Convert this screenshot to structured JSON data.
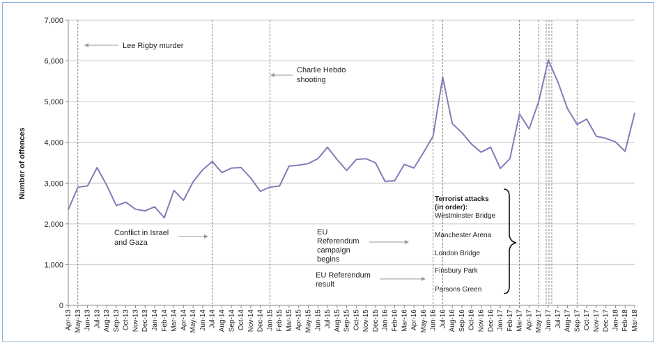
{
  "chart_data": {
    "type": "line",
    "ylabel": "Number of offences",
    "ylim": [
      0,
      7000
    ],
    "yticks": [
      0,
      1000,
      2000,
      3000,
      4000,
      5000,
      6000,
      7000
    ],
    "ytick_labels": [
      "0",
      "1,000",
      "2,000",
      "3,000",
      "4,000",
      "5,000",
      "6,000",
      "7,000"
    ],
    "grid": "horizontal",
    "categories": [
      "Apr-13",
      "May-13",
      "Jun-13",
      "Jul-13",
      "Aug-13",
      "Sep-13",
      "Oct-13",
      "Nov-13",
      "Dec-13",
      "Jan-14",
      "Feb-14",
      "Mar-14",
      "Apr-14",
      "May-14",
      "Jun-14",
      "Jul-14",
      "Aug-14",
      "Sep-14",
      "Oct-14",
      "Nov-14",
      "Dec-14",
      "Jan-15",
      "Feb-15",
      "Mar-15",
      "Apr-15",
      "May-15",
      "Jun-15",
      "Jul-15",
      "Aug-15",
      "Sep-15",
      "Oct-15",
      "Nov-15",
      "Dec-15",
      "Jan-16",
      "Feb-16",
      "Mar-16",
      "Apr-16",
      "May-16",
      "Jun-16",
      "Jul-16",
      "Aug-16",
      "Sep-16",
      "Oct-16",
      "Nov-16",
      "Dec-16",
      "Jan-17",
      "Feb-17",
      "Mar-17",
      "Apr-17",
      "May-17",
      "Jun-17",
      "Jul-17",
      "Aug-17",
      "Sep-17",
      "Oct-17",
      "Nov-17",
      "Dec-17",
      "Jan-18",
      "Feb-18",
      "Mar-18"
    ],
    "series": [
      {
        "color": "#8878b8",
        "values": [
          2350,
          2900,
          2930,
          3380,
          2950,
          2450,
          2530,
          2360,
          2320,
          2420,
          2150,
          2820,
          2580,
          3030,
          3330,
          3530,
          3260,
          3370,
          3380,
          3130,
          2800,
          2900,
          2930,
          3420,
          3440,
          3480,
          3600,
          3880,
          3580,
          3310,
          3580,
          3600,
          3500,
          3040,
          3060,
          3460,
          3370,
          3750,
          4150,
          5600,
          4460,
          4240,
          3960,
          3760,
          3880,
          3360,
          3600,
          4700,
          4330,
          5000,
          6020,
          5480,
          4830,
          4440,
          4570,
          4150,
          4100,
          4010,
          3780,
          4720
        ]
      }
    ],
    "event_lines": [
      "May-13",
      "Jul-14",
      "Jan-15",
      "Jun-16",
      "Jul-16",
      "Mar-17",
      "May-17",
      "Jun-17",
      "Jun-17",
      "Jun-17",
      "Sep-17"
    ],
    "annotations": {
      "rigby": "Lee Rigby murder",
      "hebdo": [
        "Charlie Hebdo",
        "shooting"
      ],
      "conflict": [
        "Conflict in Israel",
        "and Gaza"
      ],
      "campaign": [
        "EU",
        "Referendum",
        "campaign",
        "begins"
      ],
      "result": [
        "EU Referendum",
        "result"
      ],
      "attacks_title": [
        "Terrorist attacks",
        "(in order):"
      ],
      "attacks": [
        "Westminster Bridge",
        "Manchester Arena",
        "London Bridge",
        "Finsbury Park",
        "Parsons Green"
      ]
    }
  }
}
